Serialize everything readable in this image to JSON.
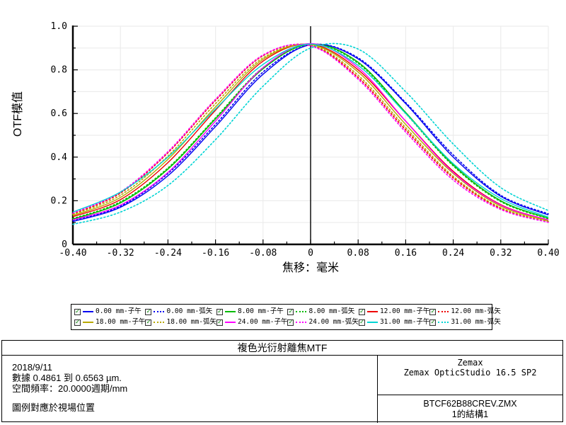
{
  "chart_data": {
    "type": "line",
    "title": "複色光衍射離焦MTF",
    "xlabel": "焦移：毫米",
    "ylabel": "OTF模值",
    "xlim": [
      -0.4,
      0.4
    ],
    "ylim": [
      0,
      1.0
    ],
    "grid": true,
    "x_grid_step": 0.08,
    "y_grid_step": 0.1,
    "zero_line_x": 0,
    "legend_position": "bottom",
    "x_tick_labels": [
      "-0.40",
      "-0.32",
      "-0.24",
      "-0.16",
      "-0.08",
      "0",
      "0.08",
      "0.16",
      "0.24",
      "0.32",
      "0.40"
    ],
    "y_tick_labels": [
      "1.0",
      "0.8",
      "0.6",
      "0.4",
      "0.2",
      "0"
    ],
    "x": [
      -0.4,
      -0.32,
      -0.24,
      -0.16,
      -0.08,
      0,
      0.08,
      0.16,
      0.24,
      0.32,
      0.4
    ],
    "series": [
      {
        "name": "0.00 mm-子午",
        "color": "#0000f0",
        "style": "solid",
        "values": [
          0.105,
          0.17,
          0.315,
          0.54,
          0.78,
          0.915,
          0.85,
          0.645,
          0.4,
          0.22,
          0.135
        ]
      },
      {
        "name": "0.00 mm-弧矢",
        "color": "#0000f0",
        "style": "dotted",
        "values": [
          0.11,
          0.175,
          0.325,
          0.55,
          0.79,
          0.915,
          0.855,
          0.65,
          0.41,
          0.225,
          0.14
        ]
      },
      {
        "name": "8.00 mm-子午",
        "color": "#00bb00",
        "style": "solid",
        "values": [
          0.115,
          0.19,
          0.345,
          0.575,
          0.805,
          0.918,
          0.835,
          0.605,
          0.365,
          0.2,
          0.12
        ]
      },
      {
        "name": "8.00 mm-弧矢",
        "color": "#00bb00",
        "style": "dotted",
        "values": [
          0.118,
          0.195,
          0.35,
          0.58,
          0.81,
          0.918,
          0.83,
          0.6,
          0.36,
          0.196,
          0.118
        ]
      },
      {
        "name": "12.00 mm-子午",
        "color": "#ee0000",
        "style": "solid",
        "values": [
          0.127,
          0.205,
          0.375,
          0.615,
          0.84,
          0.918,
          0.8,
          0.565,
          0.335,
          0.182,
          0.112
        ]
      },
      {
        "name": "12.00 mm-弧矢",
        "color": "#ee0000",
        "style": "dotted",
        "values": [
          0.14,
          0.235,
          0.42,
          0.66,
          0.865,
          0.912,
          0.765,
          0.525,
          0.305,
          0.165,
          0.104
        ]
      },
      {
        "name": "18.00 mm-子午",
        "color": "#b8a800",
        "style": "solid",
        "values": [
          0.132,
          0.215,
          0.39,
          0.63,
          0.848,
          0.916,
          0.79,
          0.55,
          0.325,
          0.175,
          0.108
        ]
      },
      {
        "name": "18.00 mm-弧矢",
        "color": "#b8a800",
        "style": "dotted",
        "values": [
          0.137,
          0.225,
          0.405,
          0.645,
          0.855,
          0.914,
          0.775,
          0.535,
          0.312,
          0.168,
          0.105
        ]
      },
      {
        "name": "24.00 mm-子午",
        "color": "#ff00ff",
        "style": "solid",
        "values": [
          0.112,
          0.18,
          0.33,
          0.565,
          0.81,
          0.92,
          0.81,
          0.565,
          0.33,
          0.18,
          0.112
        ]
      },
      {
        "name": "24.00 mm-弧矢",
        "color": "#ff00ff",
        "style": "dotted",
        "values": [
          0.143,
          0.24,
          0.425,
          0.665,
          0.868,
          0.91,
          0.757,
          0.515,
          0.295,
          0.16,
          0.101
        ]
      },
      {
        "name": "31.00 mm-子午",
        "color": "#00d4d4",
        "style": "solid",
        "values": [
          0.148,
          0.24,
          0.4,
          0.62,
          0.825,
          0.918,
          0.82,
          0.6,
          0.37,
          0.21,
          0.125
        ]
      },
      {
        "name": "31.00 mm-弧矢",
        "color": "#00d4d4",
        "style": "dotted",
        "values": [
          0.092,
          0.148,
          0.27,
          0.48,
          0.725,
          0.9,
          0.895,
          0.7,
          0.46,
          0.26,
          0.155
        ]
      }
    ]
  },
  "legend": {
    "checkbox_glyph": "✓"
  },
  "footer": {
    "title": "複色光衍射離焦MTF",
    "date": "2018/9/11",
    "data_range": "數據 0.4861 到 0.6563 µm.",
    "spatial_frequency": "空間頻率：20.0000週期/mm",
    "legend_note": "圖例對應於視場位置",
    "brand": "Zemax",
    "software": "Zemax OpticStudio 16.5 SP2",
    "file_name": "BTCF62B88CREV.ZMX",
    "configuration": "1的結構1"
  }
}
